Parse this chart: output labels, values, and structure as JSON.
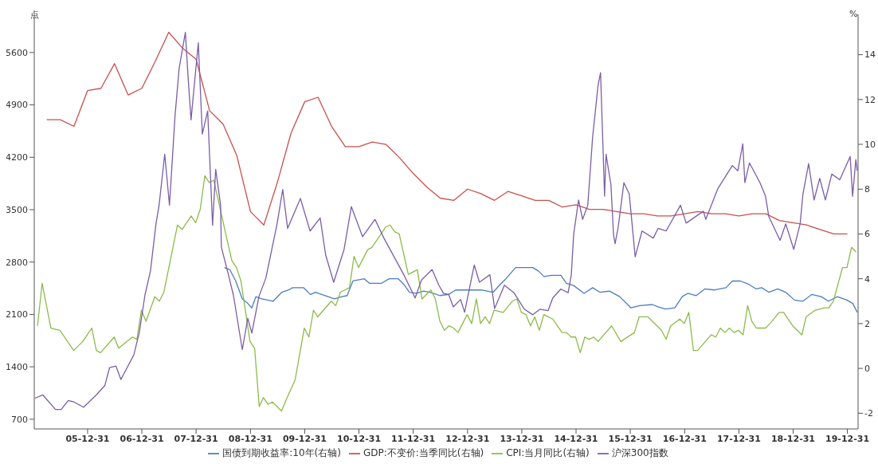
{
  "chart_data": {
    "type": "line",
    "ylabel": "点",
    "y2label": "%",
    "legend": "bottom",
    "xlim": [
      "2005-01-06",
      "2020-03-12"
    ],
    "xticks": [
      {
        "value": "2005-12-31",
        "label": "05-12-31"
      },
      {
        "value": "2006-12-31",
        "label": "06-12-31"
      },
      {
        "value": "2007-12-31",
        "label": "07-12-31"
      },
      {
        "value": "2008-12-31",
        "label": "08-12-31"
      },
      {
        "value": "2009-12-31",
        "label": "09-12-31"
      },
      {
        "value": "2010-12-31",
        "label": "10-12-31"
      },
      {
        "value": "2011-12-31",
        "label": "11-12-31"
      },
      {
        "value": "2012-12-31",
        "label": "12-12-31"
      },
      {
        "value": "2013-12-31",
        "label": "13-12-31"
      },
      {
        "value": "2014-12-31",
        "label": "14-12-31"
      },
      {
        "value": "2015-12-31",
        "label": "15-12-31"
      },
      {
        "value": "2016-12-31",
        "label": "16-12-31"
      },
      {
        "value": "2017-12-31",
        "label": "17-12-31"
      },
      {
        "value": "2018-12-31",
        "label": "18-12-31"
      },
      {
        "value": "2019-12-31",
        "label": "19-12-31"
      }
    ],
    "ylim": [
      570,
      6110
    ],
    "yticks": [
      700,
      1400,
      2100,
      2800,
      3500,
      4200,
      4900,
      5600
    ],
    "y2lim": [
      -2.7,
      15.8
    ],
    "y2ticks": [
      -2,
      0,
      2,
      4,
      6,
      8,
      10,
      12,
      14
    ],
    "series": [
      {
        "name": "国债到期收益率:10年(右轴)",
        "color": "#4a7ebf",
        "axis": "y2",
        "x": [
          "2008-07-09",
          "2008-08-15",
          "2008-09-23",
          "2008-11-06",
          "2008-12-13",
          "2009-01-09",
          "2009-02-05",
          "2009-03-18",
          "2009-06-02",
          "2009-07-30",
          "2009-09-14",
          "2009-10-10",
          "2009-12-24",
          "2010-02-07",
          "2010-03-14",
          "2010-07-19",
          "2010-09-06",
          "2010-10-13",
          "2010-11-20",
          "2011-02-05",
          "2011-03-11",
          "2011-06-01",
          "2011-07-23",
          "2011-09-22",
          "2011-10-29",
          "2011-12-06",
          "2012-01-23",
          "2012-03-11",
          "2012-04-23",
          "2012-06-27",
          "2012-08-25",
          "2012-10-12",
          "2013-01-17",
          "2013-04-01",
          "2013-06-21",
          "2013-08-08",
          "2013-09-15",
          "2013-11-19",
          "2014-01-06",
          "2014-03-15",
          "2014-04-22",
          "2014-05-29",
          "2014-07-17",
          "2014-09-20",
          "2014-10-27",
          "2014-12-15",
          "2015-02-23",
          "2015-04-22",
          "2015-06-09",
          "2015-08-13",
          "2015-10-21",
          "2016-01-05",
          "2016-03-04",
          "2016-05-28",
          "2016-07-05",
          "2016-08-23",
          "2016-10-26",
          "2016-12-14",
          "2017-01-21",
          "2017-03-19",
          "2017-05-17",
          "2017-07-20",
          "2017-10-05",
          "2017-11-17",
          "2018-01-10",
          "2018-03-08",
          "2018-04-25",
          "2018-06-02",
          "2018-07-20",
          "2018-09-18",
          "2018-11-11",
          "2019-01-09",
          "2019-03-07",
          "2019-05-05",
          "2019-07-09",
          "2019-08-26",
          "2019-10-25",
          "2019-12-28",
          "2020-02-05",
          "2020-03-07"
        ],
        "values": [
          4.5,
          4.4,
          3.9,
          3.1,
          2.9,
          2.7,
          3.2,
          3.1,
          3.0,
          3.4,
          3.5,
          3.6,
          3.6,
          3.3,
          3.4,
          3.1,
          3.2,
          3.25,
          3.9,
          4.0,
          3.8,
          3.8,
          4.0,
          4.0,
          3.75,
          3.4,
          3.35,
          3.45,
          3.4,
          3.25,
          3.3,
          3.5,
          3.5,
          3.5,
          3.4,
          3.75,
          4.0,
          4.5,
          4.5,
          4.5,
          4.35,
          4.1,
          4.15,
          4.15,
          3.8,
          3.7,
          3.35,
          3.6,
          3.4,
          3.45,
          3.2,
          2.7,
          2.8,
          2.85,
          2.75,
          2.65,
          2.7,
          3.2,
          3.35,
          3.25,
          3.55,
          3.5,
          3.6,
          3.9,
          3.9,
          3.75,
          3.55,
          3.6,
          3.4,
          3.55,
          3.4,
          3.05,
          3.0,
          3.3,
          3.2,
          3.0,
          3.2,
          3.05,
          2.9,
          2.5
        ]
      },
      {
        "name": "GDP:不变价:当季同比(右轴)",
        "color": "#c9504c",
        "axis": "y2",
        "x": [
          "2005-03-31",
          "2005-06-30",
          "2005-09-30",
          "2005-12-31",
          "2006-03-31",
          "2006-06-30",
          "2006-09-30",
          "2006-12-31",
          "2007-03-31",
          "2007-06-30",
          "2007-09-30",
          "2007-12-31",
          "2008-03-31",
          "2008-06-30",
          "2008-09-30",
          "2008-12-31",
          "2009-03-31",
          "2009-06-30",
          "2009-09-30",
          "2009-12-31",
          "2010-03-31",
          "2010-06-30",
          "2010-09-30",
          "2010-12-31",
          "2011-03-31",
          "2011-06-30",
          "2011-09-30",
          "2011-12-31",
          "2012-03-31",
          "2012-06-30",
          "2012-09-30",
          "2012-12-31",
          "2013-03-31",
          "2013-06-30",
          "2013-09-30",
          "2013-12-31",
          "2014-03-31",
          "2014-06-30",
          "2014-09-30",
          "2014-12-31",
          "2015-03-31",
          "2015-06-30",
          "2015-09-30",
          "2015-12-31",
          "2016-03-31",
          "2016-06-30",
          "2016-09-30",
          "2016-12-31",
          "2017-03-31",
          "2017-06-30",
          "2017-09-30",
          "2017-12-31",
          "2018-03-31",
          "2018-06-30",
          "2018-09-30",
          "2018-12-31",
          "2019-03-31",
          "2019-06-30",
          "2019-09-30",
          "2019-12-31"
        ],
        "values": [
          11.1,
          11.1,
          10.8,
          12.4,
          12.5,
          13.6,
          12.2,
          12.5,
          13.7,
          15.0,
          14.3,
          13.8,
          11.5,
          10.9,
          9.5,
          7.0,
          6.4,
          8.3,
          10.5,
          11.9,
          12.1,
          10.8,
          9.9,
          9.9,
          10.1,
          10.0,
          9.4,
          8.7,
          8.1,
          7.6,
          7.5,
          8.0,
          7.8,
          7.5,
          7.9,
          7.7,
          7.5,
          7.5,
          7.2,
          7.3,
          7.1,
          7.1,
          7.0,
          6.9,
          6.9,
          6.8,
          6.8,
          6.9,
          7.0,
          6.9,
          6.9,
          6.8,
          6.9,
          6.9,
          6.6,
          6.5,
          6.4,
          6.2,
          6.0,
          6.0
        ]
      },
      {
        "name": "CPI:当月同比(右轴)",
        "color": "#8cbb4a",
        "axis": "y2",
        "x": [
          "2005-01-28",
          "2005-02-28",
          "2005-04-28",
          "2005-06-28",
          "2005-09-28",
          "2005-11-28",
          "2006-01-28",
          "2006-02-28",
          "2006-03-28",
          "2006-06-28",
          "2006-07-28",
          "2006-10-28",
          "2006-11-28",
          "2006-12-28",
          "2007-01-28",
          "2007-03-28",
          "2007-04-28",
          "2007-05-28",
          "2007-08-28",
          "2007-09-28",
          "2007-11-28",
          "2007-12-28",
          "2008-01-28",
          "2008-02-28",
          "2008-03-28",
          "2008-04-28",
          "2008-07-28",
          "2008-08-28",
          "2008-09-28",
          "2008-10-28",
          "2008-12-28",
          "2009-01-28",
          "2009-02-28",
          "2009-03-28",
          "2009-04-28",
          "2009-05-28",
          "2009-07-28",
          "2009-08-28",
          "2009-10-28",
          "2009-12-28",
          "2010-01-28",
          "2010-02-28",
          "2010-03-28",
          "2010-06-28",
          "2010-07-28",
          "2010-08-28",
          "2010-10-28",
          "2010-11-28",
          "2010-12-28",
          "2011-02-28",
          "2011-03-28",
          "2011-06-28",
          "2011-07-28",
          "2011-08-28",
          "2011-09-28",
          "2011-11-28",
          "2012-01-28",
          "2012-02-28",
          "2012-04-28",
          "2012-05-28",
          "2012-06-28",
          "2012-07-28",
          "2012-08-28",
          "2012-09-28",
          "2012-10-28",
          "2012-12-28",
          "2013-01-28",
          "2013-02-28",
          "2013-03-28",
          "2013-04-28",
          "2013-05-28",
          "2013-06-28",
          "2013-08-28",
          "2013-10-28",
          "2013-11-28",
          "2013-12-28",
          "2014-01-28",
          "2014-02-28",
          "2014-03-28",
          "2014-04-28",
          "2014-05-28",
          "2014-07-28",
          "2014-09-28",
          "2014-10-28",
          "2014-11-28",
          "2014-12-28",
          "2015-01-28",
          "2015-02-28",
          "2015-03-28",
          "2015-04-28",
          "2015-05-28",
          "2015-08-28",
          "2015-10-28",
          "2016-01-28",
          "2016-02-28",
          "2016-04-28",
          "2016-06-28",
          "2016-07-28",
          "2016-08-28",
          "2016-09-28",
          "2016-11-28",
          "2016-12-28",
          "2017-01-28",
          "2017-02-28",
          "2017-03-28",
          "2017-06-28",
          "2017-07-28",
          "2017-08-28",
          "2017-09-28",
          "2017-10-28",
          "2017-11-28",
          "2017-12-28",
          "2018-01-28",
          "2018-02-28",
          "2018-03-28",
          "2018-04-28",
          "2018-06-28",
          "2018-07-28",
          "2018-09-28",
          "2018-10-28",
          "2018-12-28",
          "2019-02-28",
          "2019-03-28",
          "2019-05-28",
          "2019-07-28",
          "2019-08-28",
          "2019-09-28",
          "2019-11-28",
          "2019-12-28",
          "2020-01-28",
          "2020-02-28"
        ],
        "values": [
          1.9,
          3.8,
          1.8,
          1.7,
          0.8,
          1.2,
          1.8,
          0.8,
          0.7,
          1.4,
          0.9,
          1.4,
          1.3,
          2.6,
          2.1,
          3.2,
          3.0,
          3.4,
          6.4,
          6.2,
          6.8,
          6.5,
          7.1,
          8.6,
          8.3,
          8.4,
          5.7,
          4.8,
          4.5,
          3.9,
          1.2,
          0.9,
          -1.7,
          -1.3,
          -1.6,
          -1.5,
          -1.9,
          -1.4,
          -0.5,
          1.8,
          1.4,
          2.6,
          2.3,
          3.0,
          2.8,
          3.4,
          3.6,
          5.0,
          4.5,
          5.3,
          5.4,
          6.3,
          6.4,
          6.1,
          6.0,
          4.2,
          4.4,
          3.1,
          3.5,
          3.1,
          2.1,
          1.7,
          1.9,
          1.8,
          1.6,
          2.4,
          2.0,
          3.1,
          2.0,
          2.3,
          2.0,
          2.6,
          2.5,
          3.0,
          3.1,
          2.5,
          2.4,
          1.9,
          2.3,
          1.7,
          2.4,
          2.2,
          1.6,
          1.6,
          1.4,
          1.4,
          0.7,
          1.4,
          1.3,
          1.4,
          1.2,
          1.9,
          1.2,
          1.6,
          2.3,
          2.3,
          1.9,
          1.7,
          1.3,
          1.9,
          2.2,
          2.0,
          2.5,
          0.8,
          0.8,
          1.5,
          1.4,
          1.8,
          1.6,
          1.8,
          1.6,
          1.7,
          1.5,
          2.8,
          2.1,
          1.8,
          1.8,
          2.0,
          2.5,
          2.5,
          1.9,
          1.5,
          2.3,
          2.6,
          2.7,
          2.7,
          3.0,
          4.5,
          4.5,
          5.4,
          5.2
        ]
      },
      {
        "name": "沪深300指数",
        "color": "#7b5ea7",
        "x": [
          "2005-01-11",
          "2005-03-04",
          "2005-05-29",
          "2005-07-06",
          "2005-08-23",
          "2005-09-30",
          "2005-12-04",
          "2006-02-28",
          "2006-04-26",
          "2006-05-28",
          "2006-07-10",
          "2006-08-12",
          "2006-11-07",
          "2006-12-14",
          "2007-01-21",
          "2007-02-27",
          "2007-04-05",
          "2007-04-26",
          "2007-06-03",
          "2007-07-05",
          "2007-08-11",
          "2007-09-08",
          "2007-10-20",
          "2007-11-06",
          "2007-11-27",
          "2008-01-15",
          "2008-02-11",
          "2008-03-18",
          "2008-04-20",
          "2008-05-11",
          "2008-06-13",
          "2008-06-18",
          "2008-08-01",
          "2008-09-07",
          "2008-11-06",
          "2008-12-13",
          "2009-01-09",
          "2009-02-26",
          "2009-04-14",
          "2009-06-28",
          "2009-08-05",
          "2009-09-07",
          "2009-12-02",
          "2010-02-05",
          "2010-04-14",
          "2010-05-21",
          "2010-07-14",
          "2010-09-22",
          "2010-11-10",
          "2011-01-24",
          "2011-04-18",
          "2011-06-17",
          "2011-10-29",
          "2012-01-13",
          "2012-02-25",
          "2012-05-06",
          "2012-06-21",
          "2012-07-23",
          "2012-08-25",
          "2012-09-26",
          "2012-11-14",
          "2012-12-11",
          "2013-02-14",
          "2013-03-21",
          "2013-05-30",
          "2013-07-01",
          "2013-09-05",
          "2013-11-08",
          "2014-01-17",
          "2014-03-15",
          "2014-05-03",
          "2014-06-26",
          "2014-07-27",
          "2014-09-20",
          "2014-11-08",
          "2014-11-29",
          "2014-12-15",
          "2015-01-17",
          "2015-02-13",
          "2015-03-20",
          "2015-04-22",
          "2015-05-08",
          "2015-05-28",
          "2015-06-14",
          "2015-07-11",
          "2015-07-21",
          "2015-08-23",
          "2015-09-09",
          "2015-09-20",
          "2015-10-11",
          "2015-11-18",
          "2015-12-24",
          "2016-02-02",
          "2016-03-19",
          "2016-06-03",
          "2016-07-05",
          "2016-08-28",
          "2016-12-03",
          "2017-01-10",
          "2017-05-06",
          "2017-05-22",
          "2017-08-11",
          "2017-11-17",
          "2017-12-24",
          "2018-01-26",
          "2018-02-09",
          "2018-03-12",
          "2018-05-22",
          "2018-06-28",
          "2018-07-20",
          "2018-10-04",
          "2018-11-11",
          "2019-01-04",
          "2019-02-16",
          "2019-03-07",
          "2019-04-14",
          "2019-05-21",
          "2019-06-28",
          "2019-08-05",
          "2019-09-17",
          "2019-11-10",
          "2020-01-19",
          "2020-02-04",
          "2020-02-26",
          "2020-03-06"
        ],
        "values": [
          980,
          1025,
          830,
          830,
          950,
          930,
          860,
          1025,
          1150,
          1390,
          1410,
          1230,
          1560,
          1860,
          2360,
          2680,
          3310,
          3560,
          4240,
          3560,
          4745,
          5390,
          5870,
          5310,
          4700,
          5730,
          4510,
          4820,
          3290,
          4040,
          3560,
          3000,
          2660,
          2360,
          1630,
          2050,
          1850,
          2340,
          2590,
          3310,
          3770,
          3250,
          3650,
          3215,
          3390,
          2895,
          2530,
          2970,
          3540,
          3140,
          3370,
          3120,
          2630,
          2320,
          2560,
          2700,
          2490,
          2380,
          2370,
          2200,
          2300,
          2130,
          2760,
          2530,
          2630,
          2180,
          2490,
          2390,
          2170,
          2095,
          2170,
          2150,
          2320,
          2440,
          2390,
          2630,
          3170,
          3630,
          3370,
          3560,
          4480,
          4780,
          5160,
          5330,
          3680,
          4240,
          3830,
          3170,
          3045,
          3270,
          3860,
          3710,
          2870,
          3215,
          3120,
          3250,
          3215,
          3560,
          3320,
          3480,
          3370,
          3780,
          4090,
          4020,
          4380,
          3860,
          4125,
          3860,
          3680,
          3410,
          3090,
          3310,
          2970,
          3310,
          3710,
          4115,
          3630,
          3920,
          3630,
          3975,
          3900,
          4210,
          3680,
          4170,
          4020
        ]
      }
    ]
  }
}
